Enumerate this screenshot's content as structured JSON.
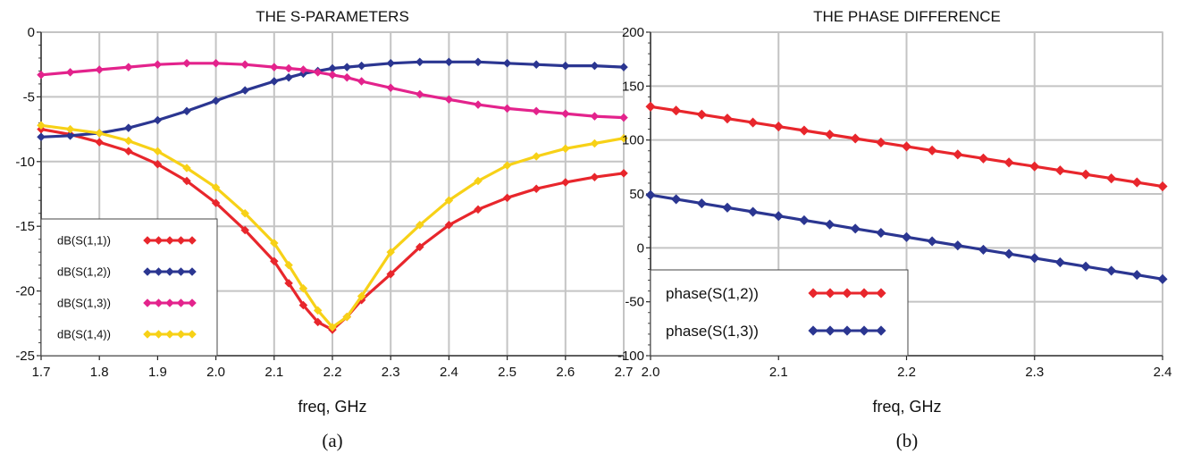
{
  "figure": {
    "charts": [
      {
        "title": "THE S-PARAMETERS",
        "xlabel": "freq, GHz",
        "caption": "(a)"
      },
      {
        "title": "THE PHASE DIFFERENCE",
        "xlabel": "freq, GHz",
        "caption": "(b)"
      }
    ]
  },
  "chart_data": [
    {
      "type": "line",
      "title": "THE S-PARAMETERS",
      "xlabel": "freq, GHz",
      "ylabel": "",
      "xlim": [
        1.7,
        2.7
      ],
      "ylim": [
        -25,
        0
      ],
      "xticks": [
        "1.7",
        "1.8",
        "1.9",
        "2.0",
        "2.1",
        "2.2",
        "2.3",
        "2.4",
        "2.5",
        "2.6",
        "2.7"
      ],
      "yticks": [
        "0",
        "-5",
        "-10",
        "-15",
        "-20",
        "-25"
      ],
      "grid": true,
      "legend_position": "bottom-left",
      "x": [
        1.7,
        1.75,
        1.8,
        1.85,
        1.9,
        1.95,
        2.0,
        2.05,
        2.1,
        2.125,
        2.15,
        2.175,
        2.2,
        2.225,
        2.25,
        2.3,
        2.35,
        2.4,
        2.45,
        2.5,
        2.55,
        2.6,
        2.65,
        2.7
      ],
      "series": [
        {
          "name": "dB(S(1,1))",
          "color": "#e8262c",
          "values": [
            -7.5,
            -7.9,
            -8.5,
            -9.2,
            -10.2,
            -11.5,
            -13.2,
            -15.3,
            -17.7,
            -19.4,
            -21.1,
            -22.4,
            -23.0,
            -22.0,
            -20.7,
            -18.7,
            -16.6,
            -14.9,
            -13.7,
            -12.8,
            -12.1,
            -11.6,
            -11.2,
            -10.9
          ]
        },
        {
          "name": "dB(S(1,2))",
          "color": "#2b3691",
          "values": [
            -8.1,
            -8.0,
            -7.8,
            -7.4,
            -6.8,
            -6.1,
            -5.3,
            -4.5,
            -3.8,
            -3.5,
            -3.2,
            -3.0,
            -2.8,
            -2.7,
            -2.6,
            -2.4,
            -2.3,
            -2.3,
            -2.3,
            -2.4,
            -2.5,
            -2.6,
            -2.6,
            -2.7
          ]
        },
        {
          "name": "dB(S(1,3))",
          "color": "#e3238c",
          "values": [
            -3.3,
            -3.1,
            -2.9,
            -2.7,
            -2.5,
            -2.4,
            -2.4,
            -2.5,
            -2.7,
            -2.8,
            -2.9,
            -3.1,
            -3.3,
            -3.5,
            -3.8,
            -4.3,
            -4.8,
            -5.2,
            -5.6,
            -5.9,
            -6.1,
            -6.3,
            -6.5,
            -6.6
          ]
        },
        {
          "name": "dB(S(1,4))",
          "color": "#f7d117",
          "values": [
            -7.2,
            -7.5,
            -7.8,
            -8.4,
            -9.2,
            -10.5,
            -12.0,
            -14.0,
            -16.3,
            -18.0,
            -19.8,
            -21.5,
            -22.8,
            -22.0,
            -20.4,
            -17.0,
            -14.9,
            -13.0,
            -11.5,
            -10.3,
            -9.6,
            -9.0,
            -8.6,
            -8.2
          ]
        }
      ]
    },
    {
      "type": "line",
      "title": "THE PHASE DIFFERENCE",
      "xlabel": "freq, GHz",
      "ylabel": "",
      "xlim": [
        2.0,
        2.4
      ],
      "ylim": [
        -100,
        200
      ],
      "xticks": [
        "2.0",
        "2.1",
        "2.2",
        "2.3",
        "2.4"
      ],
      "yticks": [
        "200",
        "150",
        "100",
        "50",
        "0",
        "-50",
        "-100"
      ],
      "grid": true,
      "legend_position": "bottom-left",
      "x": [
        2.0,
        2.02,
        2.04,
        2.06,
        2.08,
        2.1,
        2.12,
        2.14,
        2.16,
        2.18,
        2.2,
        2.22,
        2.24,
        2.26,
        2.28,
        2.3,
        2.32,
        2.34,
        2.36,
        2.38,
        2.4
      ],
      "series": [
        {
          "name": "phase(S(1,2))",
          "color": "#e8262c",
          "values": [
            131,
            127.3,
            123.6,
            119.9,
            116.2,
            112.5,
            108.8,
            105.1,
            101.4,
            97.7,
            94,
            90.3,
            86.6,
            82.9,
            79.2,
            75.5,
            71.8,
            68.1,
            64.4,
            60.7,
            57
          ]
        },
        {
          "name": "phase(S(1,3))",
          "color": "#2b3691",
          "values": [
            49,
            45.1,
            41.2,
            37.3,
            33.4,
            29.5,
            25.6,
            21.7,
            17.8,
            13.9,
            10,
            6.1,
            2.2,
            -1.7,
            -5.6,
            -9.5,
            -13.4,
            -17.3,
            -21.2,
            -25.1,
            -29
          ]
        }
      ]
    }
  ]
}
